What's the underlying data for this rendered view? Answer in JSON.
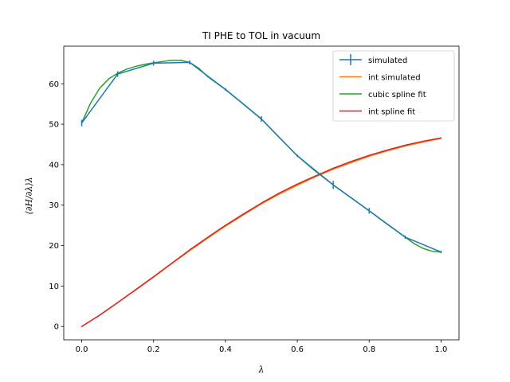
{
  "chart_data": {
    "type": "line",
    "title": "TI PHE to TOL in vacuum",
    "xlabel": "λ",
    "ylabel": "⟨∂H/∂λ⟩λ",
    "xlim": [
      -0.05,
      1.05
    ],
    "ylim": [
      -3.3,
      69.3
    ],
    "x_ticks": [
      0.0,
      0.2,
      0.4,
      0.6,
      0.8,
      1.0
    ],
    "x_tick_labels": [
      "0.0",
      "0.2",
      "0.4",
      "0.6",
      "0.8",
      "1.0"
    ],
    "y_ticks": [
      0,
      10,
      20,
      30,
      40,
      50,
      60
    ],
    "y_tick_labels": [
      "0",
      "10",
      "20",
      "30",
      "40",
      "50",
      "60"
    ],
    "grid": false,
    "legend_position": "top-right",
    "series": [
      {
        "name": "simulated",
        "color": "#1f77b4",
        "x": [
          0.0,
          0.1,
          0.2,
          0.3,
          0.4,
          0.5,
          0.6,
          0.7,
          0.8,
          0.9,
          1.0
        ],
        "y": [
          50.3,
          62.4,
          65.1,
          65.3,
          58.6,
          51.3,
          42.2,
          35.0,
          28.6,
          22.1,
          18.4
        ],
        "yerr": [
          0.8,
          0.7,
          0.6,
          0.5,
          0.3,
          0.7,
          0.3,
          1.0,
          0.7,
          0.4,
          0.3
        ]
      },
      {
        "name": "int simulated",
        "color": "#ff7f0e",
        "x": [
          0.0,
          0.05,
          0.1,
          0.15,
          0.2,
          0.25,
          0.3,
          0.35,
          0.4,
          0.45,
          0.5,
          0.55,
          0.6,
          0.65,
          0.7,
          0.75,
          0.8,
          0.85,
          0.9,
          0.95,
          1.0
        ],
        "y": [
          0.0,
          2.8,
          5.9,
          9.0,
          12.2,
          15.5,
          18.7,
          21.8,
          24.8,
          27.6,
          30.3,
          32.7,
          34.9,
          37.0,
          38.9,
          40.5,
          42.1,
          43.4,
          44.6,
          45.6,
          46.5
        ]
      },
      {
        "name": "cubic spline fit",
        "color": "#2ca02c",
        "x": [
          0.0,
          0.025,
          0.05,
          0.075,
          0.1,
          0.125,
          0.15,
          0.175,
          0.2,
          0.225,
          0.25,
          0.275,
          0.3,
          0.325,
          0.35,
          0.4,
          0.45,
          0.5,
          0.55,
          0.6,
          0.65,
          0.7,
          0.75,
          0.8,
          0.85,
          0.9,
          0.925,
          0.95,
          0.975,
          1.0
        ],
        "y": [
          50.3,
          55.3,
          58.9,
          61.2,
          62.6,
          63.6,
          64.3,
          64.8,
          65.2,
          65.5,
          65.8,
          65.8,
          65.3,
          63.9,
          61.8,
          58.6,
          55.0,
          51.3,
          46.7,
          42.2,
          38.4,
          35.0,
          31.8,
          28.6,
          25.3,
          22.1,
          20.5,
          19.3,
          18.6,
          18.4
        ]
      },
      {
        "name": "int spline fit",
        "color": "#d62728",
        "x": [
          0.0,
          0.05,
          0.1,
          0.15,
          0.2,
          0.25,
          0.3,
          0.35,
          0.4,
          0.45,
          0.5,
          0.55,
          0.6,
          0.65,
          0.7,
          0.75,
          0.8,
          0.85,
          0.9,
          0.95,
          1.0
        ],
        "y": [
          0.0,
          2.8,
          5.9,
          9.1,
          12.3,
          15.6,
          18.9,
          22.0,
          25.0,
          27.8,
          30.5,
          33.0,
          35.2,
          37.2,
          39.1,
          40.8,
          42.3,
          43.6,
          44.8,
          45.8,
          46.6
        ]
      }
    ]
  }
}
